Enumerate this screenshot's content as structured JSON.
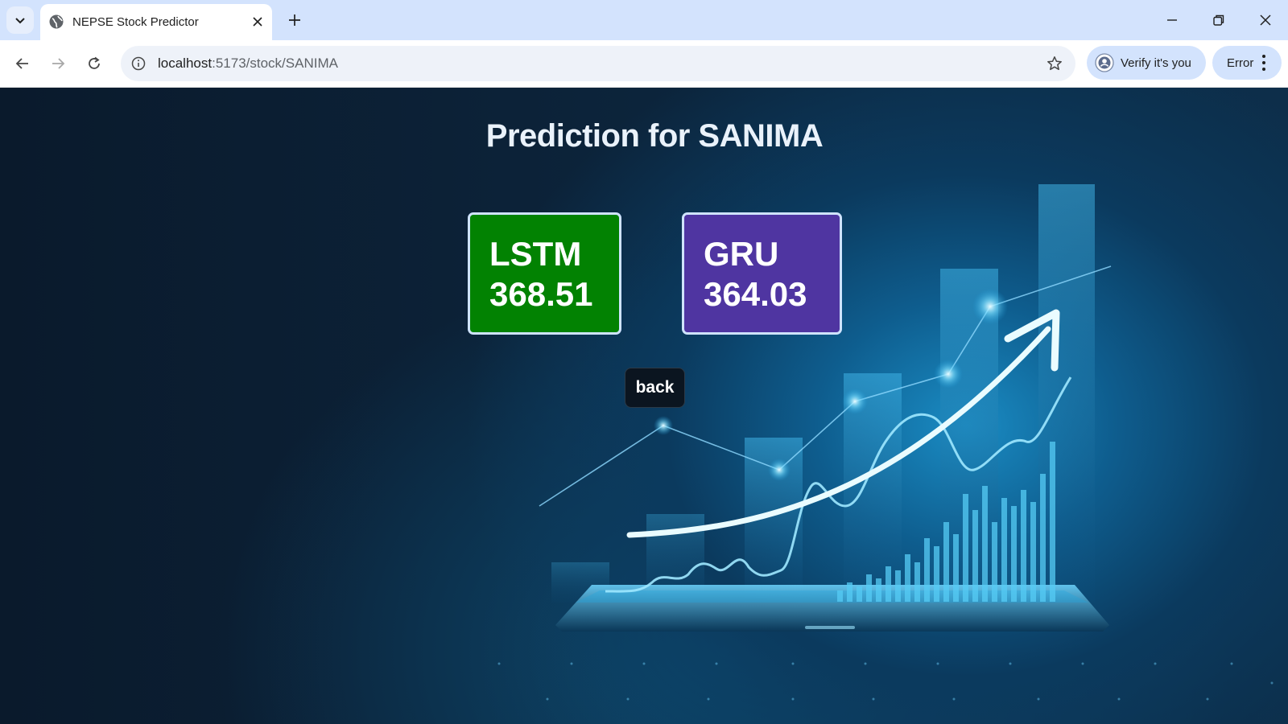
{
  "browser": {
    "tab_title": "NEPSE Stock Predictor",
    "url_host": "localhost",
    "url_path": ":5173/stock/SANIMA",
    "verify_label": "Verify it's you",
    "error_label": "Error"
  },
  "page": {
    "title": "Prediction for SANIMA",
    "cards": [
      {
        "model": "LSTM",
        "value": "368.51",
        "color": "#028202"
      },
      {
        "model": "GRU",
        "value": "364.03",
        "color": "#4f35a1"
      }
    ],
    "back_label": "back"
  },
  "icons": [
    "tab-search-icon",
    "globe-favicon-icon",
    "close-icon",
    "plus-icon",
    "minimize-icon",
    "restore-icon",
    "window-close-icon",
    "back-arrow-icon",
    "forward-arrow-icon",
    "reload-icon",
    "info-icon",
    "star-icon",
    "account-icon",
    "kebab-menu-icon"
  ]
}
